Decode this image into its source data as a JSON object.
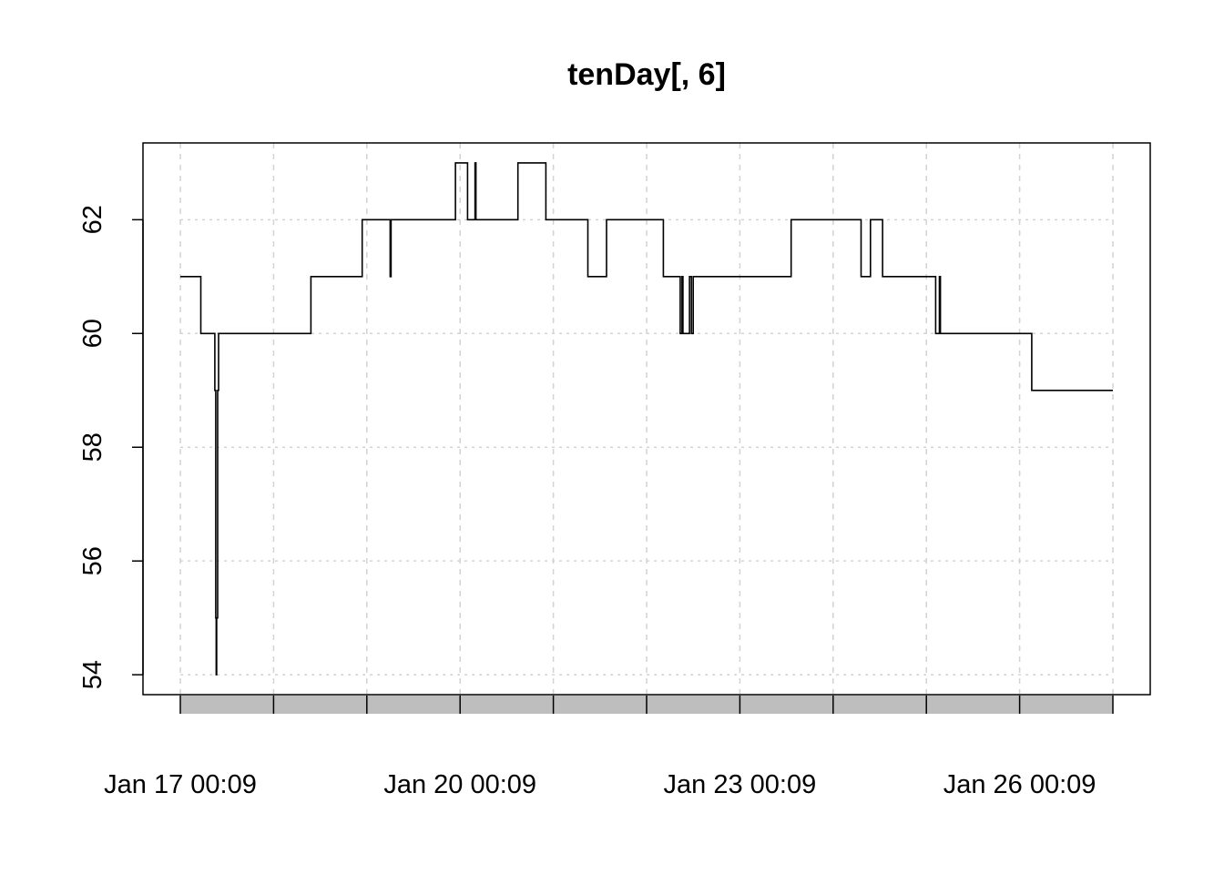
{
  "chart_data": {
    "type": "line",
    "title": "tenDay[, 6]",
    "xlabel": "",
    "ylabel": "",
    "x_unit": "days",
    "x_start_label": "Jan 17 00:09",
    "xlim": [
      0,
      10
    ],
    "ylim": [
      53.65,
      63.35
    ],
    "y_ticks": [
      54,
      56,
      58,
      60,
      62
    ],
    "x_ticks": [
      {
        "x": 0,
        "label": "Jan 17 00:09"
      },
      {
        "x": 3,
        "label": "Jan 20 00:09"
      },
      {
        "x": 6,
        "label": "Jan 23 00:09"
      },
      {
        "x": 9,
        "label": "Jan 26 00:09"
      }
    ],
    "x_grid": [
      0,
      1,
      2,
      3,
      4,
      5,
      6,
      7,
      8,
      9,
      10
    ],
    "grid": true,
    "step_mode": "after",
    "series": [
      {
        "x": [
          0.0,
          0.22,
          0.37,
          0.38,
          0.385,
          0.39,
          0.4,
          0.41,
          0.42,
          1.4,
          1.95,
          2.25,
          2.26,
          2.95,
          3.08,
          3.16,
          3.17,
          3.62,
          3.92,
          4.37,
          4.57,
          5.18,
          5.36,
          5.38,
          5.39,
          5.46,
          5.48,
          5.5,
          6.55,
          7.3,
          7.4,
          7.48,
          7.53,
          8.1,
          8.14,
          8.15,
          9.13,
          10.0
        ],
        "y": [
          61,
          60,
          59,
          55,
          54,
          55,
          59,
          60,
          60,
          61,
          62,
          61,
          62,
          63,
          62,
          63,
          62,
          63,
          62,
          61,
          62,
          61,
          60,
          61,
          60,
          61,
          60,
          61,
          62,
          61,
          62,
          62,
          61,
          60,
          61,
          60,
          59,
          59
        ]
      }
    ],
    "colors": {
      "line": "#000000",
      "grid": "#d3d3d3",
      "axis_band": "#bebebe"
    }
  }
}
